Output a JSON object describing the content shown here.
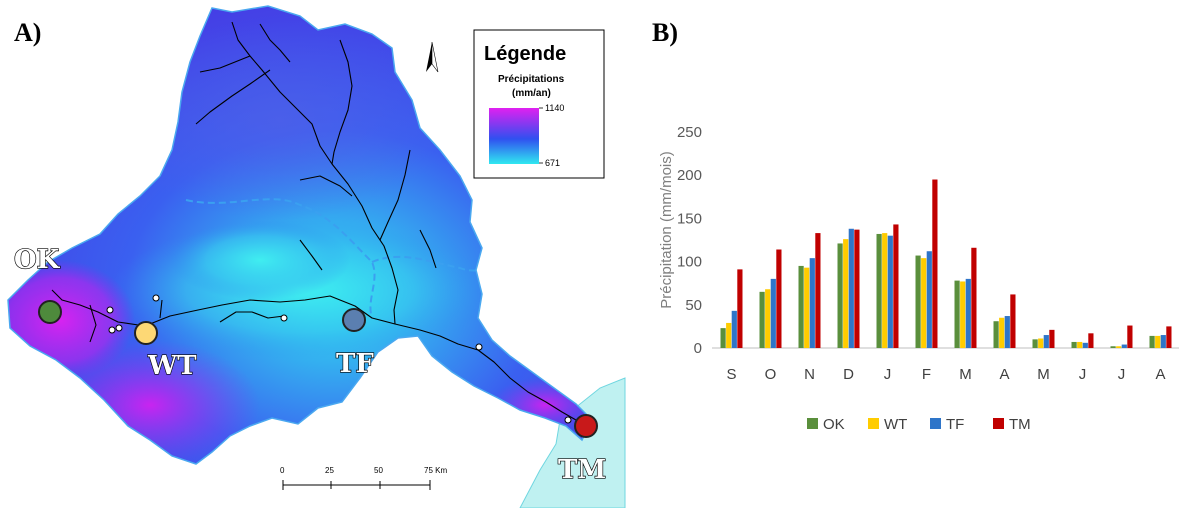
{
  "panels": {
    "a_label": "A)",
    "b_label": "B)"
  },
  "map": {
    "legend": {
      "title": "Légende",
      "subtitle_line1": "Précipitations",
      "subtitle_line2": "(mm/an)",
      "max": "1140",
      "min": "671",
      "color_high": "#e020f0",
      "color_mid": "#3050f0",
      "color_low": "#30e8f0"
    },
    "stations": [
      {
        "code": "OK",
        "color": "#4e8a3c"
      },
      {
        "code": "WT",
        "color": "#fdd875"
      },
      {
        "code": "TF",
        "color": "#5b7fb0"
      },
      {
        "code": "TM",
        "color": "#c8191a"
      }
    ],
    "scale_bar": {
      "ticks": [
        "0",
        "25",
        "50",
        "75 Km"
      ]
    },
    "north_arrow_icon": "north-arrow-icon",
    "sea_color": "#bff1f1"
  },
  "chart_data": {
    "type": "bar",
    "categories": [
      "S",
      "O",
      "N",
      "D",
      "J",
      "F",
      "M",
      "A",
      "M",
      "J",
      "J",
      "A"
    ],
    "series": [
      {
        "name": "OK",
        "color": "#5a8f3c",
        "values": [
          23,
          65,
          95,
          121,
          132,
          107,
          78,
          31,
          10,
          7,
          2,
          14
        ]
      },
      {
        "name": "WT",
        "color": "#ffcc00",
        "values": [
          29,
          68,
          93,
          126,
          133,
          104,
          77,
          35,
          11,
          7,
          2,
          14
        ]
      },
      {
        "name": "TF",
        "color": "#2e75c9",
        "values": [
          43,
          80,
          104,
          138,
          130,
          112,
          80,
          37,
          15,
          6,
          4,
          15
        ]
      },
      {
        "name": "TM",
        "color": "#c00000",
        "values": [
          91,
          114,
          133,
          137,
          143,
          195,
          116,
          62,
          21,
          17,
          26,
          25
        ]
      }
    ],
    "ylabel": "Précipitation (mm/mois)",
    "ylim": [
      0,
      250
    ],
    "yticks": [
      "0",
      "50",
      "100",
      "150",
      "200",
      "250"
    ],
    "grid": false,
    "legend_position": "bottom"
  }
}
